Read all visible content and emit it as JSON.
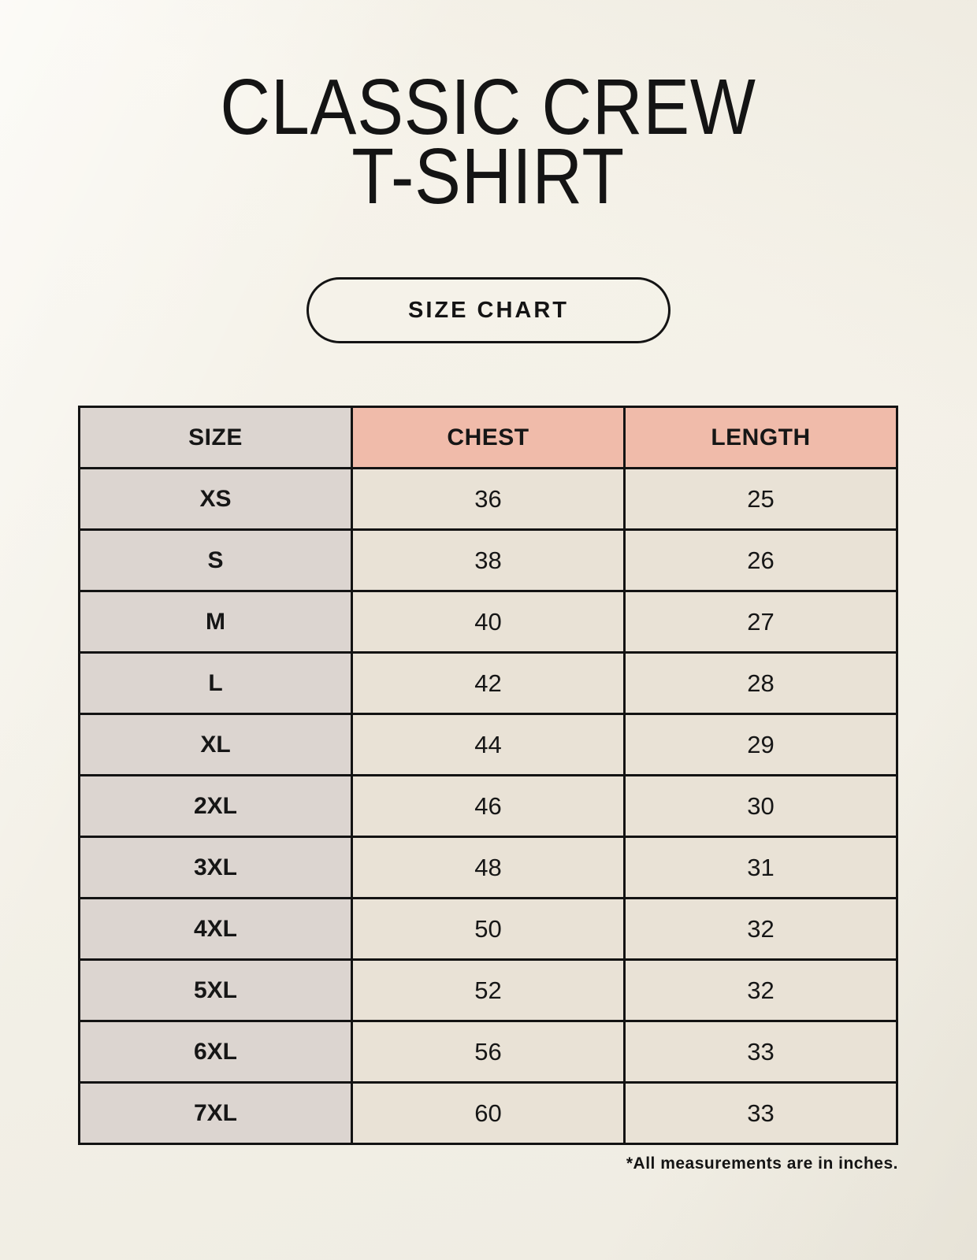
{
  "header": {
    "title_line1": "CLASSIC CREW",
    "title_line2": "T-SHIRT"
  },
  "size_chart_button": {
    "label": "SIZE CHART"
  },
  "chart_data": {
    "type": "table",
    "title": "Classic Crew T-Shirt Size Chart",
    "columns": [
      "SIZE",
      "CHEST",
      "LENGTH"
    ],
    "rows": [
      [
        "XS",
        "36",
        "25"
      ],
      [
        "S",
        "38",
        "26"
      ],
      [
        "M",
        "40",
        "27"
      ],
      [
        "L",
        "42",
        "28"
      ],
      [
        "XL",
        "44",
        "29"
      ],
      [
        "2XL",
        "46",
        "30"
      ],
      [
        "3XL",
        "48",
        "31"
      ],
      [
        "4XL",
        "50",
        "32"
      ],
      [
        "5XL",
        "52",
        "32"
      ],
      [
        "6XL",
        "56",
        "33"
      ],
      [
        "7XL",
        "60",
        "33"
      ]
    ],
    "units": "inches"
  },
  "footnote": "*All measurements are in inches.",
  "colors": {
    "background": "#f3f0e7",
    "header_accent": "#f0bbaa",
    "size_column": "#dcd5d0",
    "cell": "#e9e2d6",
    "table_border": "#131313",
    "text": "#161616"
  }
}
